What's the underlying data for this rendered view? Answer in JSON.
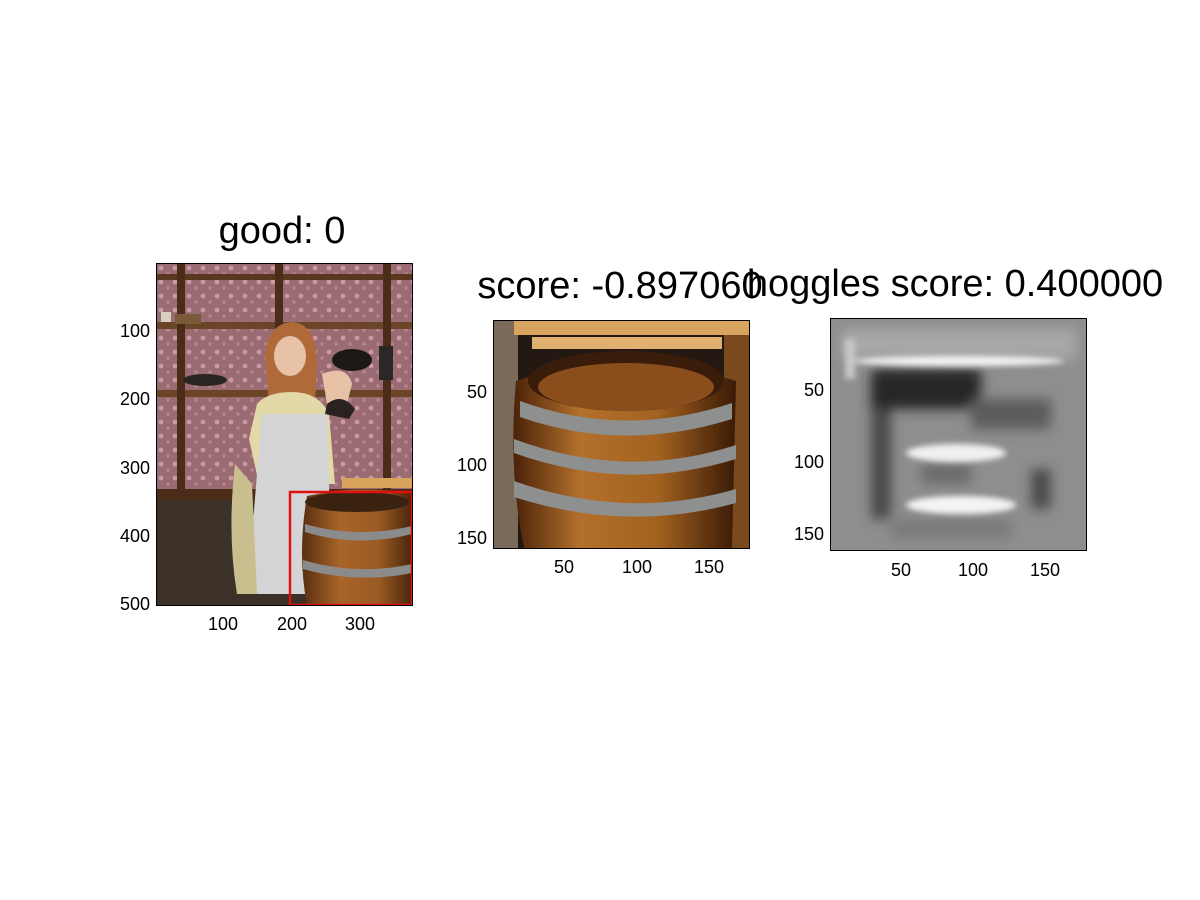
{
  "panels": [
    {
      "title": "good: 0",
      "y_ticks": [
        "100",
        "200",
        "300",
        "400",
        "500"
      ],
      "x_ticks": [
        "100",
        "200",
        "300"
      ],
      "image": "photo of child in pinafore standing beside wooden barrel",
      "overlay_color": "#e01010"
    },
    {
      "title": "score: -0.897060",
      "y_ticks": [
        "50",
        "100",
        "150"
      ],
      "x_ticks": [
        "50",
        "100",
        "150"
      ],
      "image": "cropped wooden barrel with metal hoops"
    },
    {
      "title": "hoggles score: 0.400000",
      "y_ticks": [
        "50",
        "100",
        "150"
      ],
      "x_ticks": [
        "50",
        "100",
        "150"
      ],
      "image": "grayscale HOG inverse visualization of barrel"
    }
  ]
}
